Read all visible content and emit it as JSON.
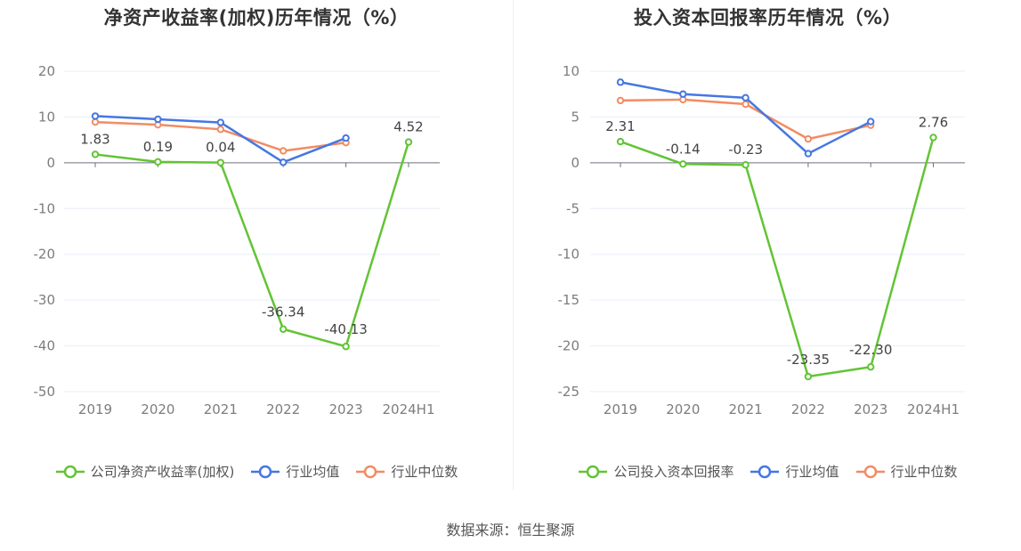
{
  "footer": {
    "source": "数据来源：恒生聚源"
  },
  "colors": {
    "company": "#62c435",
    "avg": "#4577e2",
    "median": "#f28c63",
    "grid": "#e8edf7",
    "axis": "#6e7079"
  },
  "chart_data": [
    {
      "type": "line",
      "title": "净资产收益率(加权)历年情况（%）",
      "categories": [
        "2019",
        "2020",
        "2021",
        "2022",
        "2023",
        "2024H1"
      ],
      "ylim": [
        -50,
        20
      ],
      "yticks": [
        20,
        10,
        0,
        -10,
        -20,
        -30,
        -40,
        -50
      ],
      "ytick_labels": [
        "20",
        "10",
        "0",
        "-10",
        "-20",
        "-30",
        "-40",
        "-50"
      ],
      "grid": true,
      "legend_position": "bottom",
      "series": [
        {
          "name": "公司净资产收益率(加权)",
          "color": "#62c435",
          "values": [
            1.83,
            0.19,
            0.04,
            -36.34,
            -40.13,
            4.52
          ],
          "labels": [
            "1.83",
            "0.19",
            "0.04",
            "-36.34",
            "-40.13",
            "4.52"
          ]
        },
        {
          "name": "行业均值",
          "color": "#4577e2",
          "values": [
            10.2,
            9.5,
            8.8,
            0.1,
            5.4,
            null
          ]
        },
        {
          "name": "行业中位数",
          "color": "#f28c63",
          "values": [
            8.9,
            8.3,
            7.3,
            2.6,
            4.4,
            null
          ]
        }
      ]
    },
    {
      "type": "line",
      "title": "投入资本回报率历年情况（%）",
      "categories": [
        "2019",
        "2020",
        "2021",
        "2022",
        "2023",
        "2024H1"
      ],
      "ylim": [
        -25,
        10
      ],
      "yticks": [
        10,
        5,
        0,
        -5,
        -10,
        -15,
        -20,
        -25
      ],
      "ytick_labels": [
        "10",
        "5",
        "0",
        "-5",
        "-10",
        "-15",
        "-20",
        "-25"
      ],
      "grid": true,
      "legend_position": "bottom",
      "series": [
        {
          "name": "公司投入资本回报率",
          "color": "#62c435",
          "values": [
            2.31,
            -0.14,
            -0.23,
            -23.35,
            -22.3,
            2.76
          ],
          "labels": [
            "2.31",
            "-0.14",
            "-0.23",
            "-23.35",
            "-22.30",
            "2.76"
          ]
        },
        {
          "name": "行业均值",
          "color": "#4577e2",
          "values": [
            8.8,
            7.5,
            7.1,
            1.0,
            4.5,
            null
          ]
        },
        {
          "name": "行业中位数",
          "color": "#f28c63",
          "values": [
            6.8,
            6.9,
            6.4,
            2.6,
            4.1,
            null
          ]
        }
      ]
    }
  ]
}
